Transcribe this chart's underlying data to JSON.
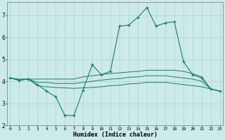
{
  "xlabel": "Humidex (Indice chaleur)",
  "bg_color": "#cceae8",
  "grid_color": "#aad4d0",
  "line_color": "#1a7a6e",
  "x_ticks": [
    0,
    1,
    2,
    3,
    4,
    5,
    6,
    7,
    8,
    9,
    10,
    11,
    12,
    13,
    14,
    15,
    16,
    17,
    18,
    19,
    20,
    21,
    22,
    23
  ],
  "ylim": [
    2.0,
    7.6
  ],
  "xlim": [
    -0.3,
    23.3
  ],
  "yticks": [
    2,
    3,
    4,
    5,
    6,
    7
  ],
  "series": {
    "main": {
      "x": [
        0,
        1,
        2,
        3,
        4,
        5,
        6,
        7,
        8,
        9,
        10,
        11,
        12,
        13,
        14,
        15,
        16,
        17,
        18,
        19,
        20,
        21,
        22,
        23
      ],
      "y": [
        4.15,
        4.05,
        4.1,
        3.85,
        3.55,
        3.3,
        2.45,
        2.45,
        3.6,
        4.75,
        4.3,
        4.45,
        6.5,
        6.55,
        6.9,
        7.35,
        6.5,
        6.65,
        6.7,
        4.9,
        4.3,
        4.15,
        3.65,
        3.55
      ]
    },
    "upper": {
      "x": [
        0,
        1,
        2,
        3,
        4,
        5,
        6,
        7,
        8,
        9,
        10,
        11,
        12,
        13,
        14,
        15,
        16,
        17,
        18,
        19,
        20,
        21,
        22,
        23
      ],
      "y": [
        4.15,
        4.1,
        4.1,
        4.1,
        4.1,
        4.1,
        4.1,
        4.1,
        4.2,
        4.25,
        4.3,
        4.35,
        4.38,
        4.42,
        4.45,
        4.5,
        4.5,
        4.5,
        4.5,
        4.45,
        4.35,
        4.2,
        3.65,
        3.55
      ]
    },
    "middle": {
      "x": [
        0,
        1,
        2,
        3,
        4,
        5,
        6,
        7,
        8,
        9,
        10,
        11,
        12,
        13,
        14,
        15,
        16,
        17,
        18,
        19,
        20,
        21,
        22,
        23
      ],
      "y": [
        4.15,
        4.05,
        4.1,
        3.95,
        3.95,
        3.9,
        3.9,
        3.9,
        3.95,
        4.0,
        4.05,
        4.1,
        4.12,
        4.18,
        4.2,
        4.25,
        4.25,
        4.25,
        4.2,
        4.15,
        4.1,
        4.0,
        3.65,
        3.55
      ]
    },
    "lower": {
      "x": [
        0,
        1,
        2,
        3,
        4,
        5,
        6,
        7,
        8,
        9,
        10,
        11,
        12,
        13,
        14,
        15,
        16,
        17,
        18,
        19,
        20,
        21,
        22,
        23
      ],
      "y": [
        4.15,
        4.05,
        4.1,
        3.8,
        3.75,
        3.72,
        3.7,
        3.68,
        3.7,
        3.72,
        3.75,
        3.8,
        3.82,
        3.88,
        3.9,
        3.95,
        3.95,
        3.95,
        3.9,
        3.85,
        3.8,
        3.75,
        3.65,
        3.55
      ]
    }
  }
}
